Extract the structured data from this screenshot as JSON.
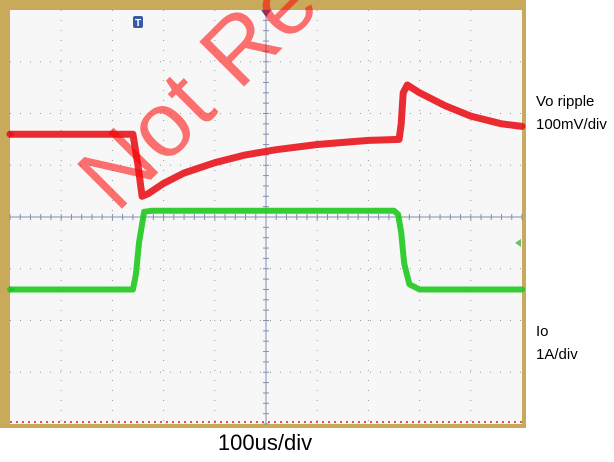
{
  "chart_data": {
    "type": "line",
    "title": "",
    "x_label": "100us/div",
    "x_divisions": 10,
    "y_divisions": 8,
    "grid": true,
    "background": "#f7f7f7",
    "frame_color": "#c8aa5a",
    "series": [
      {
        "name": "Vo ripple",
        "label_lines": [
          "Vo ripple",
          "100mV/div"
        ],
        "color": "#e8141c",
        "unit": "mV",
        "x_us": [
          0,
          240,
          250,
          258,
          270,
          300,
          340,
          400,
          460,
          520,
          600,
          700,
          760,
          764,
          768,
          776,
          800,
          850,
          900,
          960,
          1000
        ],
        "y": [
          0,
          0,
          -60,
          -120,
          -115,
          -95,
          -75,
          -55,
          -40,
          -30,
          -20,
          -12,
          -10,
          20,
          80,
          95,
          80,
          55,
          35,
          20,
          15
        ]
      },
      {
        "name": "Io",
        "label_lines": [
          "Io",
          "1A/div"
        ],
        "color": "#1ec81e",
        "unit": "A",
        "x_us": [
          0,
          240,
          246,
          252,
          262,
          276,
          750,
          758,
          764,
          770,
          780,
          800,
          1000
        ],
        "y": [
          0,
          0,
          0.3,
          0.9,
          1.5,
          1.52,
          1.52,
          1.45,
          1.1,
          0.5,
          0.1,
          0,
          0
        ]
      }
    ]
  },
  "markers": {
    "trigger": "T"
  },
  "watermark": "Not Recommended"
}
